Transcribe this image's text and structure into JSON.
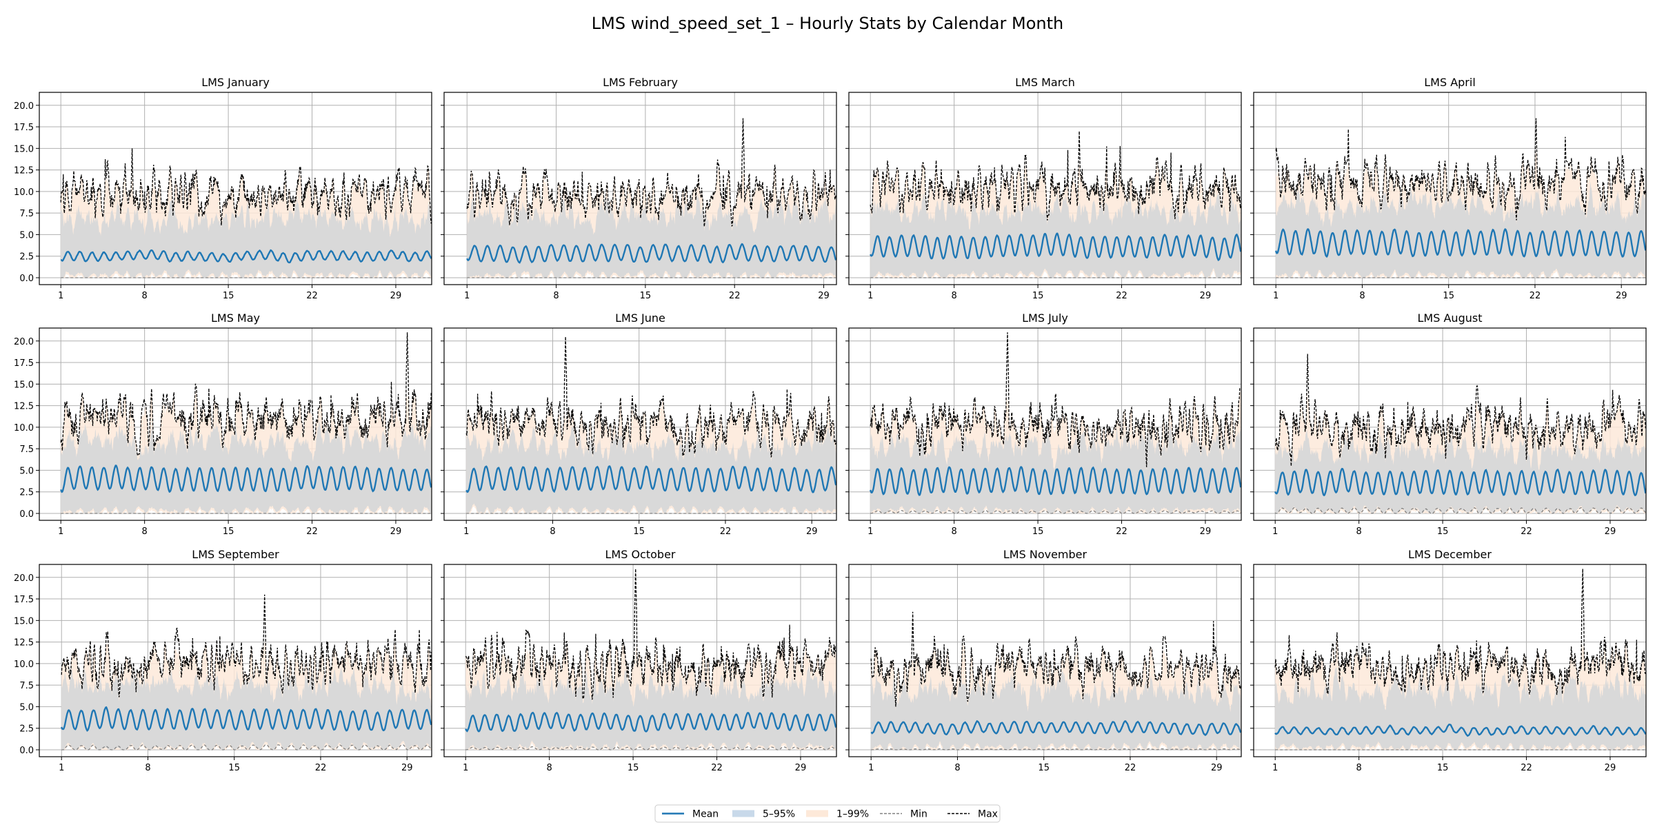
{
  "chart_data": {
    "type": "line",
    "title": "LMS wind_speed_set_1 – Hourly Stats by Calendar Month",
    "ylim": [
      -0.8,
      21.5
    ],
    "yticks": [
      0.0,
      2.5,
      5.0,
      7.5,
      10.0,
      12.5,
      15.0,
      17.5,
      20.0
    ],
    "ytick_labels": [
      "0.0",
      "2.5",
      "5.0",
      "7.5",
      "10.0",
      "12.5",
      "15.0",
      "17.5",
      "20.0"
    ],
    "xticks": [
      1,
      8,
      15,
      22,
      29
    ],
    "xtick_labels": [
      "1",
      "8",
      "15",
      "22",
      "29"
    ],
    "grid": true,
    "legend_position": "bottom-center",
    "colors": {
      "mean": "#1f77b4",
      "band_5_95": "#c8d9ea",
      "band_1_99": "#fde9d9",
      "band_overlap": "#d9d9d9",
      "min": "#808080",
      "max": "#000000"
    },
    "legend": [
      {
        "label": "Mean",
        "kind": "line",
        "color": "#1f77b4",
        "dash": "solid"
      },
      {
        "label": "5–95%",
        "kind": "patch",
        "color": "#c8d9ea"
      },
      {
        "label": "1–99%",
        "kind": "patch",
        "color": "#fde9d9"
      },
      {
        "label": "Min",
        "kind": "line",
        "color": "#808080",
        "dash": "dashed"
      },
      {
        "label": "Max",
        "kind": "line",
        "color": "#000000",
        "dash": "dashed"
      }
    ],
    "panels": [
      {
        "title": "LMS January",
        "days": 31,
        "mean_level": 2.5,
        "mean_amp": 0.5,
        "max_level": 10.0,
        "max_peak": 15.0,
        "p95_level": 7.0,
        "p99_level": 11.0,
        "min_level": 0.0
      },
      {
        "title": "LMS February",
        "days": 29,
        "mean_level": 2.8,
        "mean_amp": 0.9,
        "max_level": 9.5,
        "max_peak": 18.5,
        "p95_level": 7.5,
        "p99_level": 11.0,
        "min_level": 0.0
      },
      {
        "title": "LMS March",
        "days": 31,
        "mean_level": 3.6,
        "mean_amp": 1.2,
        "max_level": 10.5,
        "max_peak": 17.0,
        "p95_level": 8.0,
        "p99_level": 11.5,
        "min_level": 0.0
      },
      {
        "title": "LMS April",
        "days": 30,
        "mean_level": 4.0,
        "mean_amp": 1.4,
        "max_level": 11.0,
        "max_peak": 18.5,
        "p95_level": 8.5,
        "p99_level": 12.0,
        "min_level": 0.0
      },
      {
        "title": "LMS May",
        "days": 31,
        "mean_level": 4.0,
        "mean_amp": 1.3,
        "max_level": 11.0,
        "max_peak": 21.0,
        "p95_level": 8.5,
        "p99_level": 12.0,
        "min_level": 0.0
      },
      {
        "title": "LMS June",
        "days": 30,
        "mean_level": 4.0,
        "mean_amp": 1.3,
        "max_level": 10.5,
        "max_peak": 20.5,
        "p95_level": 8.0,
        "p99_level": 11.5,
        "min_level": 0.0
      },
      {
        "title": "LMS July",
        "days": 31,
        "mean_level": 3.8,
        "mean_amp": 1.4,
        "max_level": 10.0,
        "max_peak": 21.0,
        "p95_level": 8.0,
        "p99_level": 11.5,
        "min_level": 0.3
      },
      {
        "title": "LMS August",
        "days": 31,
        "mean_level": 3.6,
        "mean_amp": 1.3,
        "max_level": 10.0,
        "max_peak": 18.5,
        "p95_level": 7.5,
        "p99_level": 11.0,
        "min_level": 0.6
      },
      {
        "title": "LMS September",
        "days": 30,
        "mean_level": 3.5,
        "mean_amp": 1.1,
        "max_level": 10.0,
        "max_peak": 18.0,
        "p95_level": 7.5,
        "p99_level": 11.0,
        "min_level": 0.5
      },
      {
        "title": "LMS October",
        "days": 31,
        "mean_level": 3.2,
        "mean_amp": 0.9,
        "max_level": 10.0,
        "max_peak": 21.0,
        "p95_level": 7.5,
        "p99_level": 11.0,
        "min_level": 0.3
      },
      {
        "title": "LMS November",
        "days": 30,
        "mean_level": 2.5,
        "mean_amp": 0.6,
        "max_level": 9.5,
        "max_peak": 16.0,
        "p95_level": 7.0,
        "p99_level": 10.5,
        "min_level": 0.1
      },
      {
        "title": "LMS December",
        "days": 31,
        "mean_level": 2.2,
        "mean_amp": 0.4,
        "max_level": 9.5,
        "max_peak": 21.0,
        "p95_level": 7.0,
        "p99_level": 10.5,
        "min_level": 0.0
      }
    ]
  }
}
